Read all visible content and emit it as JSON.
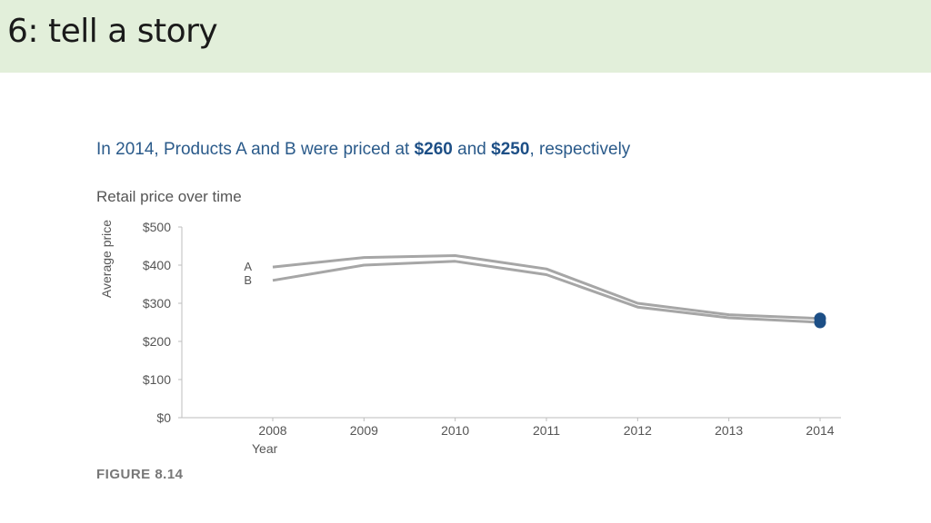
{
  "slide": {
    "title": "6: tell a story"
  },
  "headline": {
    "part1": "In 2014, Products A and B were priced at ",
    "value_a": "$260",
    "part2": " and ",
    "value_b": "$250",
    "part3": ", respectively"
  },
  "caption": "FIGURE 8.14",
  "colors": {
    "header_bg": "#e2efda",
    "line": "#a6a6a6",
    "highlight": "#1d4f86",
    "headline": "#2a5a8a"
  },
  "chart_data": {
    "type": "line",
    "subtitle": "Retail price over time",
    "xlabel": "Year",
    "ylabel": "Average price",
    "categories": [
      "2008",
      "2009",
      "2010",
      "2011",
      "2012",
      "2013",
      "2014"
    ],
    "ylim": [
      0,
      500
    ],
    "yticks": [
      0,
      100,
      200,
      300,
      400,
      500
    ],
    "ytick_labels": [
      "$0",
      "$100",
      "$200",
      "$300",
      "$400",
      "$500"
    ],
    "series": [
      {
        "name": "A",
        "values": [
          395,
          420,
          425,
          390,
          300,
          270,
          260
        ]
      },
      {
        "name": "B",
        "values": [
          360,
          400,
          410,
          375,
          290,
          262,
          250
        ]
      }
    ],
    "highlight_point": {
      "x": "2014",
      "series": [
        "A",
        "B"
      ]
    },
    "grid": false
  }
}
